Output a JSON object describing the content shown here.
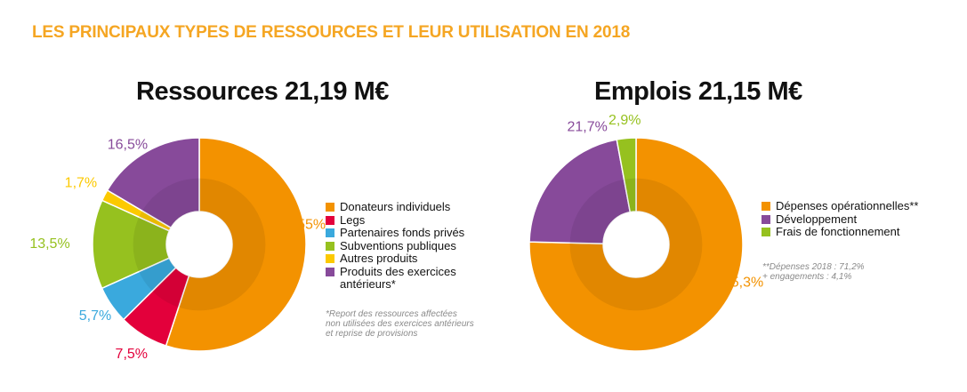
{
  "page_title": "LES PRINCIPAUX TYPES DE RESSOURCES ET LEUR UTILISATION EN 2018",
  "chart_data": [
    {
      "type": "pie",
      "title": "Ressources 21,19 M€",
      "categories": [
        "Donateurs individuels",
        "Legs",
        "Partenaires fonds privés",
        "Subventions publiques",
        "Autres produits",
        "Produits des exercices antérieurs*"
      ],
      "values": [
        55,
        7.5,
        5.7,
        13.5,
        1.7,
        16.5
      ],
      "value_labels": [
        "55%",
        "7,5%",
        "5,7%",
        "13,5%",
        "1,7%",
        "16,5%"
      ],
      "colors": [
        "#F39200",
        "#E3003B",
        "#3AA9DD",
        "#96C11F",
        "#FCC900",
        "#874A9A"
      ],
      "label_colors": [
        "#F39200",
        "#E3003B",
        "#3AA9DD",
        "#96C11F",
        "#FCC900",
        "#874A9A"
      ],
      "legend_position": "right",
      "footnote": "*Report des ressources affectées\nnon utilisées des exercices antérieurs\net reprise de provisions"
    },
    {
      "type": "pie",
      "title": "Emplois 21,15 M€",
      "categories": [
        "Dépenses opérationnelles**",
        "Développement",
        "Frais de fonctionnement"
      ],
      "values": [
        75.3,
        21.7,
        2.9
      ],
      "value_labels": [
        "75,3%",
        "21,7%",
        "2,9%"
      ],
      "colors": [
        "#F39200",
        "#874A9A",
        "#96C11F"
      ],
      "label_colors": [
        "#F39200",
        "#874A9A",
        "#96C11F"
      ],
      "legend_position": "right",
      "footnote": "**Dépenses 2018 : 71,2%\n   + engagements : 4,1%"
    }
  ]
}
